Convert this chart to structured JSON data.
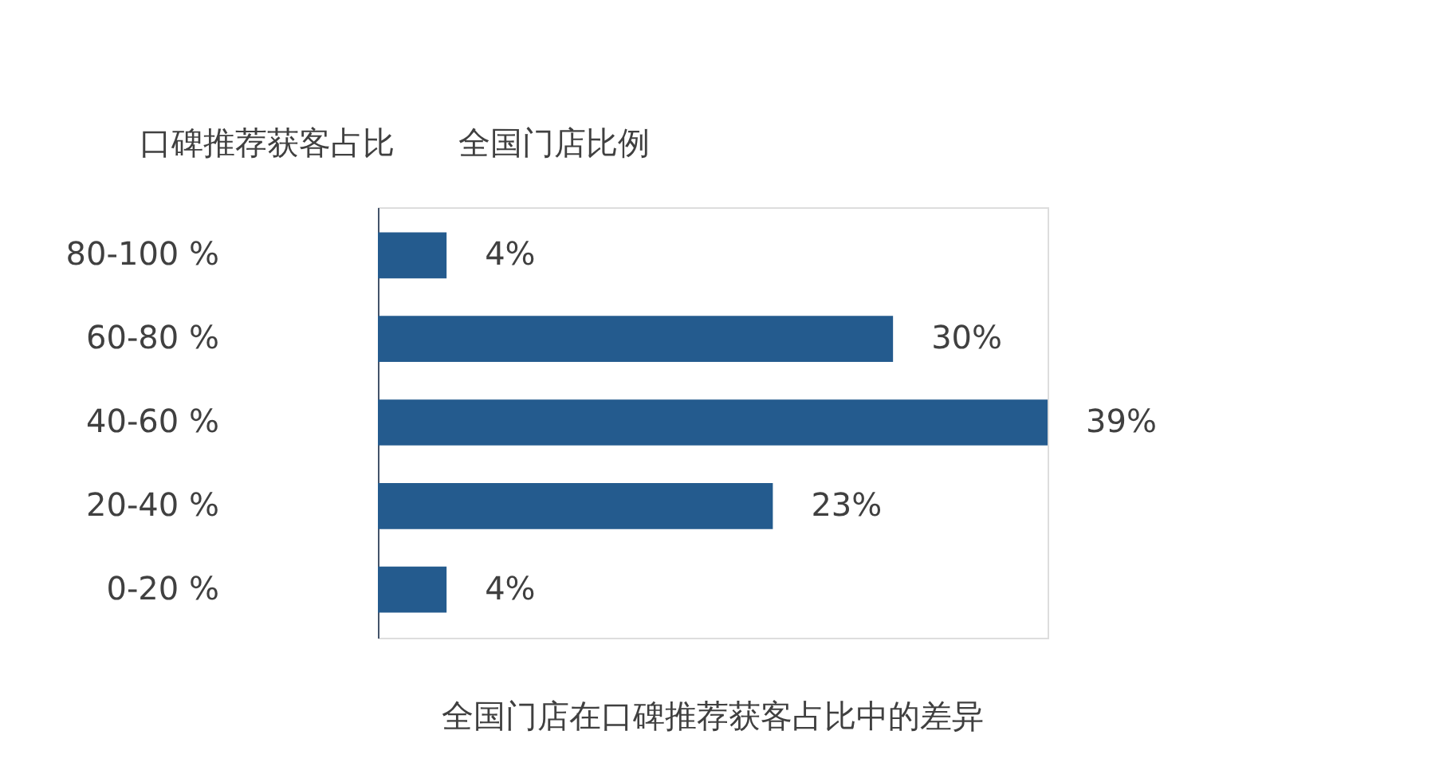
{
  "chart_data": {
    "type": "bar",
    "orientation": "horizontal",
    "ylabel": "口碑推荐获客占比",
    "xlabel": "全国门店比例",
    "categories": [
      "80-100 %",
      "60-80 %",
      "40-60 %",
      "20-40 %",
      "0-20 %"
    ],
    "values": [
      4,
      30,
      39,
      23,
      4
    ],
    "value_labels": [
      "4%",
      "30%",
      "39%",
      "23%",
      "4%"
    ],
    "color": "#245b8e",
    "grid": false,
    "tick_labels": "y",
    "annotations": [
      "全国门店在口碑推荐获客占比中的差异"
    ]
  }
}
